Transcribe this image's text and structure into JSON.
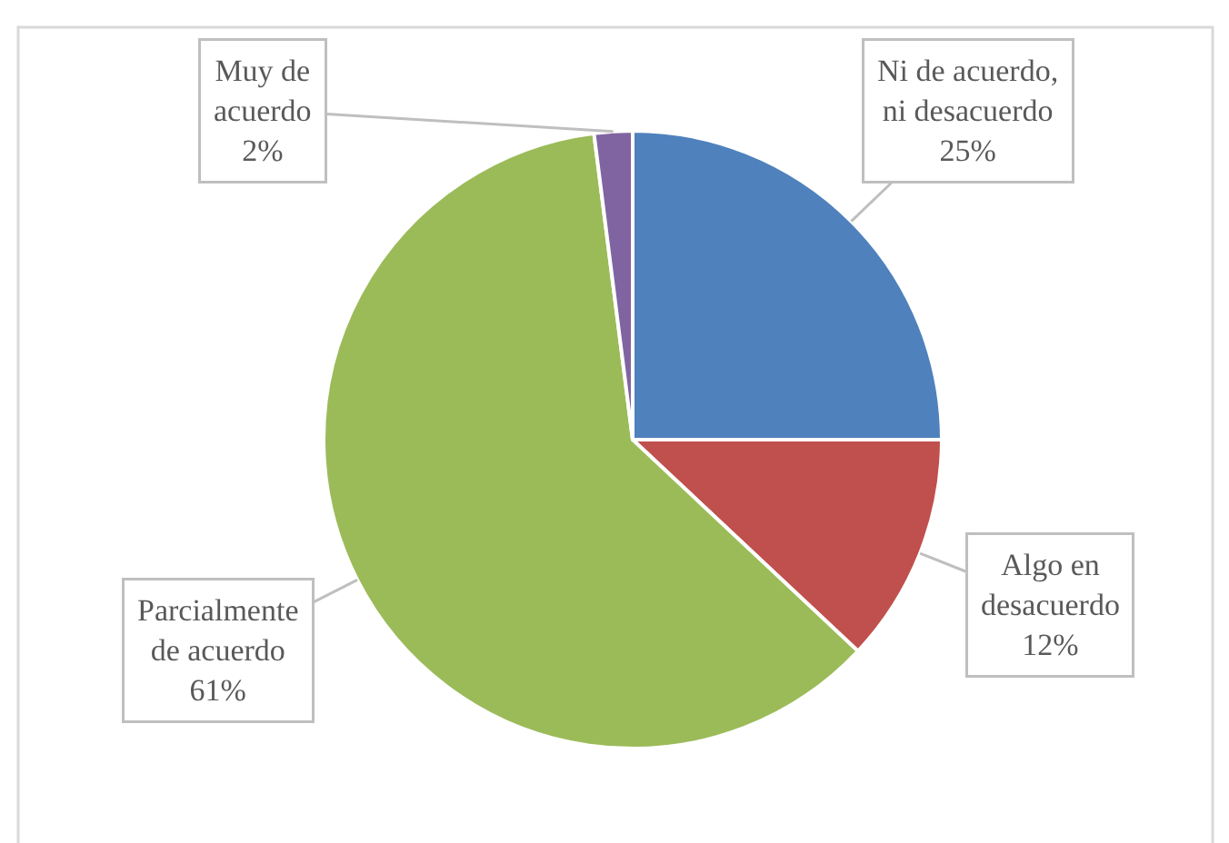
{
  "chart_data": {
    "type": "pie",
    "categories": [
      "Ni de acuerdo, ni desacuerdo",
      "Algo en desacuerdo",
      "Parcialmente de acuerdo",
      "Muy de acuerdo"
    ],
    "values": [
      25,
      12,
      61,
      2
    ],
    "colors": [
      "#4f81bd",
      "#c0504d",
      "#9bbb59",
      "#8064a2"
    ],
    "value_labels": [
      "25%",
      "12%",
      "61%",
      "2%"
    ]
  }
}
